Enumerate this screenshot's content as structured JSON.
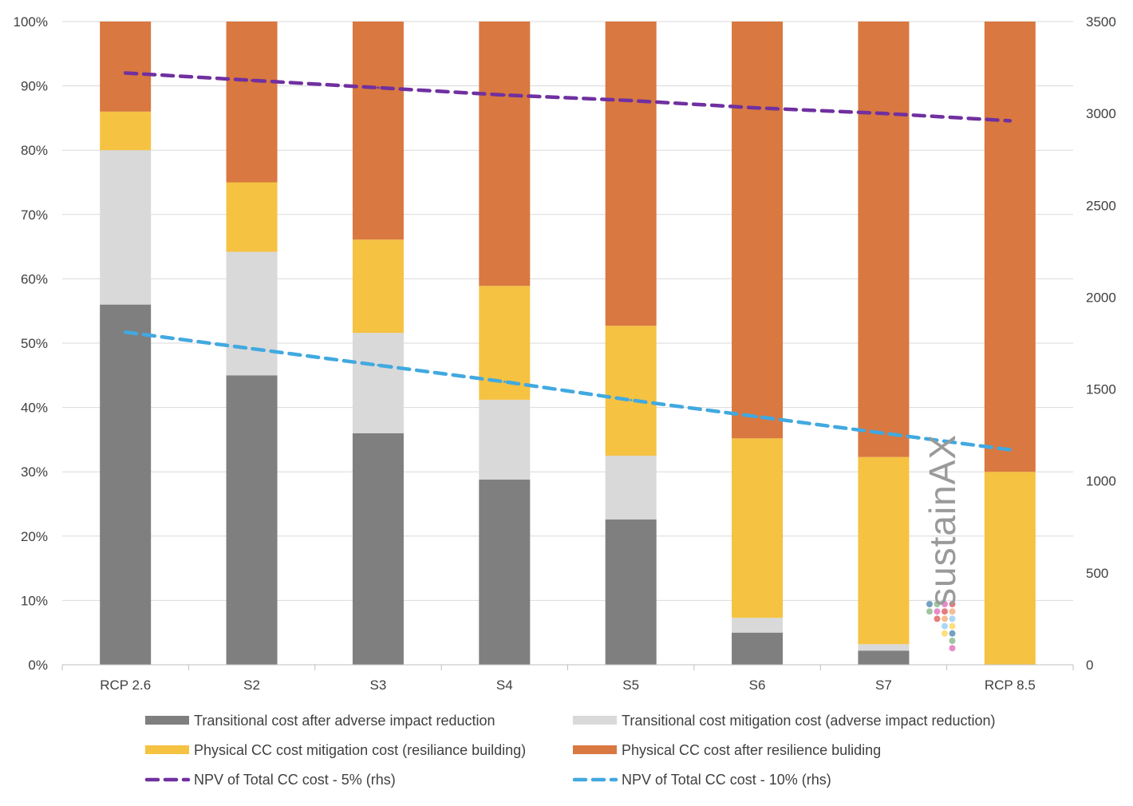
{
  "chart_data": {
    "type": "bar",
    "stacked": "percent",
    "categories": [
      "RCP 2.6",
      "S2",
      "S3",
      "S4",
      "S5",
      "S6",
      "S7",
      "RCP 8.5"
    ],
    "series": [
      {
        "name": "Transitional cost after adverse impact reduction",
        "color": "#7f7f7f",
        "values": [
          56,
          45,
          36,
          28.8,
          22.6,
          5,
          2.2,
          0
        ]
      },
      {
        "name": "Transitional cost mitigation cost (adverse impact reduction)",
        "color": "#d9d9d9",
        "values": [
          24,
          19.2,
          15.6,
          12.4,
          9.9,
          2.3,
          1,
          0
        ]
      },
      {
        "name": "Physical CC cost mitigation cost (resiliance building)",
        "color": "#f5c242",
        "values": [
          6,
          10.8,
          14.5,
          17.7,
          20.2,
          27.9,
          29.1,
          30
        ]
      },
      {
        "name": "Physical CC cost after resilience buliding",
        "color": "#d97840",
        "values": [
          14,
          25,
          33.9,
          41.1,
          47.3,
          64.8,
          67.7,
          70
        ]
      }
    ],
    "lines": [
      {
        "name": "NPV of Total CC cost - 5% (rhs)",
        "color": "#7030a0",
        "axis": "right",
        "values": [
          3220,
          3180,
          3140,
          3100,
          3070,
          3030,
          3000,
          2960
        ]
      },
      {
        "name": "NPV of Total CC cost - 10% (rhs)",
        "color": "#41a9e0",
        "axis": "right",
        "values": [
          1810,
          1720,
          1630,
          1540,
          1440,
          1350,
          1260,
          1170
        ]
      }
    ],
    "left_axis": {
      "min": 0,
      "max": 100,
      "step": 10,
      "tick_labels": [
        "0%",
        "10%",
        "20%",
        "30%",
        "40%",
        "50%",
        "60%",
        "70%",
        "80%",
        "90%",
        "100%"
      ]
    },
    "right_axis": {
      "min": 0,
      "max": 3500,
      "step": 500,
      "tick_labels": [
        "0",
        "500",
        "1000",
        "1500",
        "2000",
        "2500",
        "3000",
        "3500"
      ]
    },
    "grid": true,
    "legend_position": "bottom",
    "legend_order": [
      [
        "series",
        0
      ],
      [
        "series",
        1
      ],
      [
        "series",
        2
      ],
      [
        "series",
        3
      ],
      [
        "lines",
        0
      ],
      [
        "lines",
        1
      ]
    ]
  },
  "watermark": {
    "text": "sustainAX",
    "dot_colors": [
      "#5b8fb9",
      "#8fbc8f",
      "#e377c2",
      "#e06666",
      "#f4b183",
      "#9ad0f5",
      "#ffd966"
    ]
  }
}
